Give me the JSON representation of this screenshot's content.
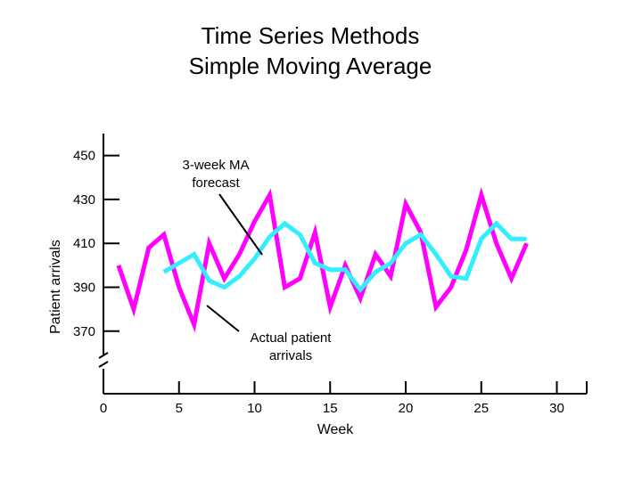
{
  "chart_data": {
    "type": "line",
    "title_lines": [
      "Time Series Methods",
      "Simple Moving Average"
    ],
    "xlabel": "Week",
    "ylabel": "Patient arrivals",
    "xlim": [
      0,
      32
    ],
    "ylim": [
      356,
      460
    ],
    "x_ticks": [
      0,
      5,
      10,
      15,
      20,
      25,
      30
    ],
    "y_ticks": [
      370,
      390,
      410,
      430,
      450
    ],
    "series": [
      {
        "name": "Actual patient arrivals",
        "color": "#ff00ff",
        "x": [
          1,
          2,
          3,
          4,
          5,
          6,
          7,
          8,
          9,
          10,
          11,
          12,
          13,
          14,
          15,
          16,
          17,
          18,
          19,
          20,
          21,
          22,
          23,
          24,
          25,
          26,
          27,
          28
        ],
        "values": [
          400,
          380,
          408,
          414,
          390,
          373,
          410,
          394,
          405,
          420,
          432,
          390,
          394,
          415,
          381,
          400,
          385,
          405,
          395,
          428,
          415,
          381,
          390,
          407,
          432,
          410,
          394,
          410
        ]
      },
      {
        "name": "3-week MA forecast",
        "color": "#33eeff",
        "x": [
          4,
          5,
          6,
          7,
          8,
          9,
          10,
          11,
          12,
          13,
          14,
          15,
          16,
          17,
          18,
          19,
          20,
          21,
          22,
          23,
          24,
          25,
          26,
          27,
          28
        ],
        "values": [
          397,
          401,
          405,
          393,
          390,
          395,
          403,
          413,
          419,
          414,
          401,
          398,
          398,
          389,
          397,
          401,
          410,
          414,
          405,
          395,
          394,
          412,
          419,
          412,
          412
        ]
      }
    ],
    "annotations": [
      {
        "lines": [
          "3-week MA",
          "forecast"
        ]
      },
      {
        "lines": [
          "Actual patient",
          "arrivals"
        ]
      }
    ]
  }
}
